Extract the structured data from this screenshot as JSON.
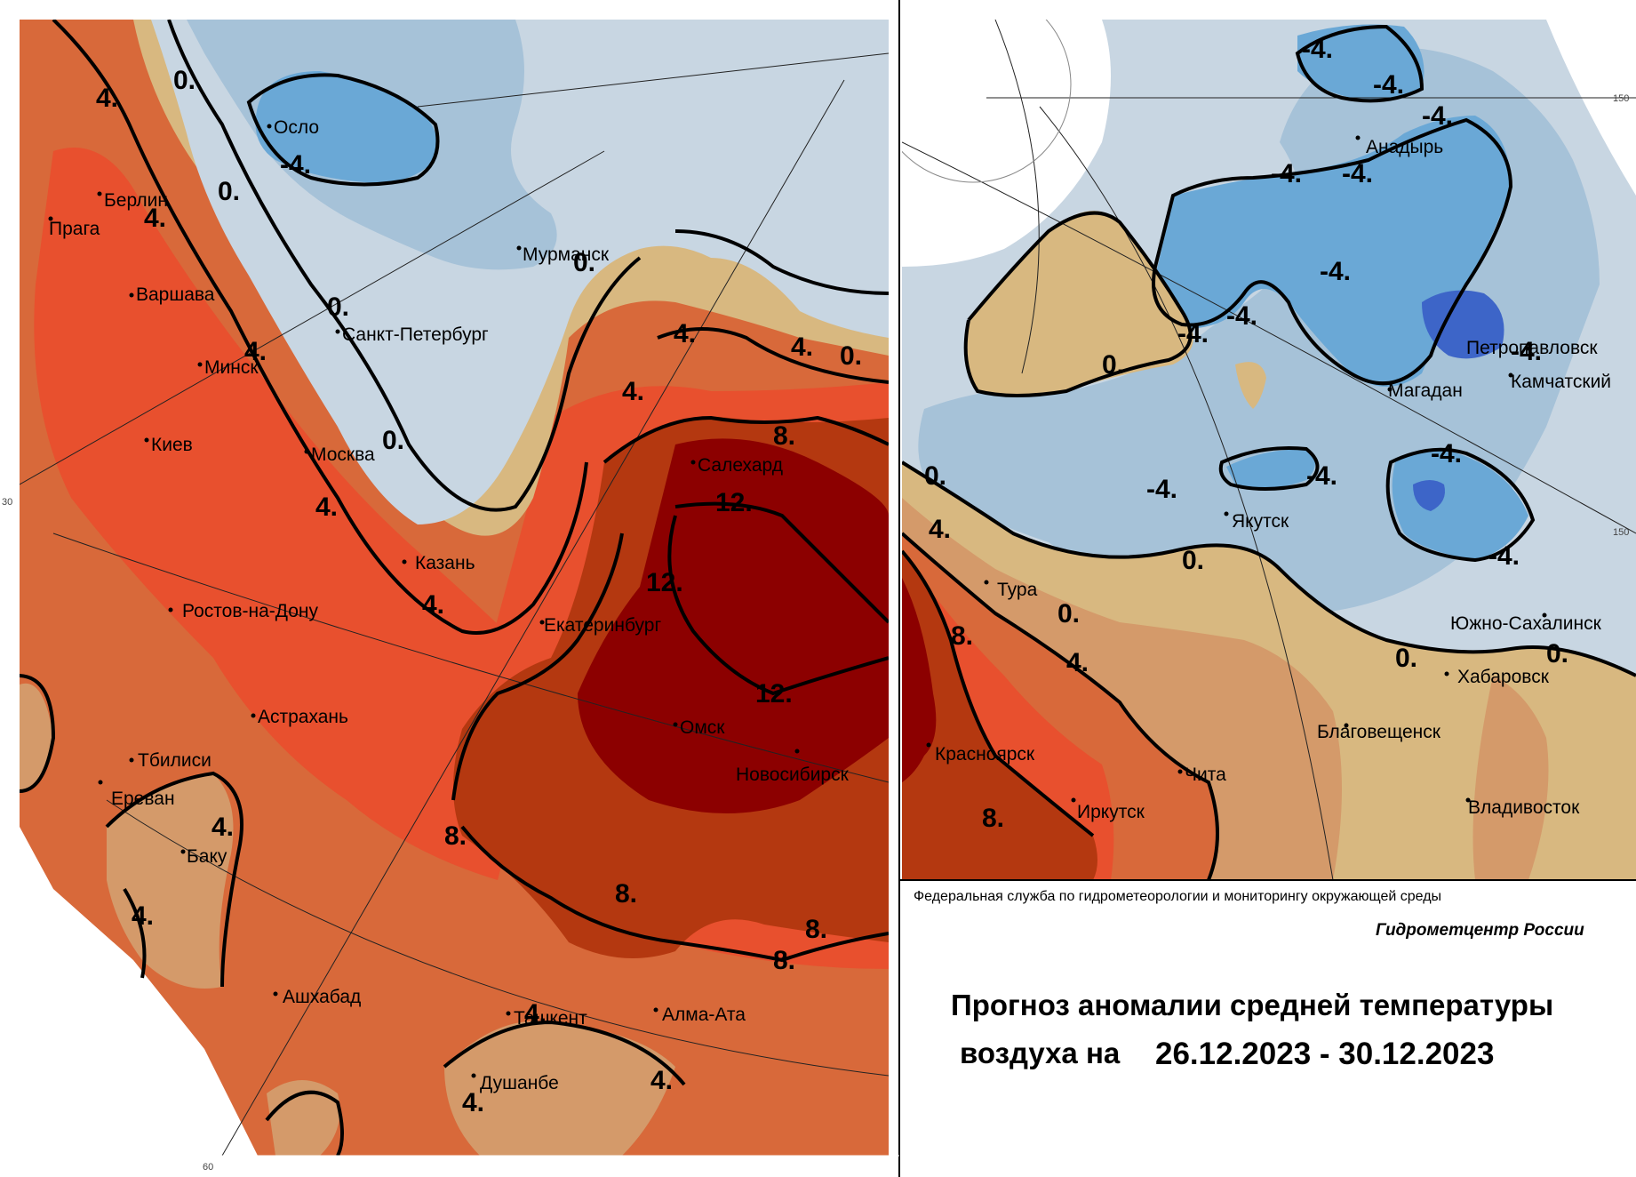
{
  "colors": {
    "anomaly_plus12": "#8c0000",
    "anomaly_8_12": "#b43810",
    "anomaly_4_8": "#e8502e",
    "anomaly_2_4": "#d8693a",
    "anomaly_0_2": "#d49a6a",
    "anomaly_0": "#d8b880",
    "anomaly_0_minus2": "#c8d6e2",
    "anomaly_minus2_minus4": "#a6c2d8",
    "anomaly_minus4": "#6aa8d6",
    "anomaly_minus6": "#3d65c8",
    "isoline": "#000000"
  },
  "left_map": {
    "cities": [
      {
        "name": "Осло"
      },
      {
        "name": "Берлин"
      },
      {
        "name": "Прага"
      },
      {
        "name": "Варшава"
      },
      {
        "name": "Минск"
      },
      {
        "name": "Санкт-Петербург"
      },
      {
        "name": "Мурманск"
      },
      {
        "name": "Москва"
      },
      {
        "name": "Киев"
      },
      {
        "name": "Казань"
      },
      {
        "name": "Ростов-на-Дону"
      },
      {
        "name": "Екатеринбург"
      },
      {
        "name": "Салехард"
      },
      {
        "name": "Астрахань"
      },
      {
        "name": "Тбилиси"
      },
      {
        "name": "Ереван"
      },
      {
        "name": "Баку"
      },
      {
        "name": "Омск"
      },
      {
        "name": "Новосибирск"
      },
      {
        "name": "Ашхабад"
      },
      {
        "name": "Ташкент"
      },
      {
        "name": "Алма-Ата"
      },
      {
        "name": "Душанбе"
      }
    ],
    "isolines": [
      "0.",
      "0.",
      "0.",
      "0.",
      "0.",
      "0.",
      "-4.",
      "4.",
      "4.",
      "4.",
      "4.",
      "4.",
      "4.",
      "4.",
      "4.",
      "4.",
      "4.",
      "4.",
      "4.",
      "4.",
      "8.",
      "8.",
      "8.",
      "8.",
      "8.",
      "12.",
      "12.",
      "12."
    ],
    "grid_labels": [
      "30",
      "60"
    ]
  },
  "right_map": {
    "cities": [
      {
        "name": "Анадырь"
      },
      {
        "name": "Петропавловск"
      },
      {
        "name": "Камчатский"
      },
      {
        "name": "Магадан"
      },
      {
        "name": "Якутск"
      },
      {
        "name": "Тура"
      },
      {
        "name": "Южно-Сахалинск"
      },
      {
        "name": "Хабаровск"
      },
      {
        "name": "Благовещенск"
      },
      {
        "name": "Красноярск"
      },
      {
        "name": "Чита"
      },
      {
        "name": "Иркутск"
      },
      {
        "name": "Владивосток"
      }
    ],
    "isolines": [
      "-4.",
      "-4.",
      "-4.",
      "-4.",
      "-4.",
      "-4.",
      "-4.",
      "-4.",
      "-4.",
      "-4.",
      "-4.",
      "-4.",
      "-4.",
      "0.",
      "0.",
      "0.",
      "0.",
      "0.",
      "0.",
      "4.",
      "4.",
      "8.",
      "8."
    ],
    "grid_labels": [
      "150",
      "150"
    ]
  },
  "legend_block": {
    "organization": "Федеральная служба по гидрометеорологии и мониторингу окружающей среды",
    "center": "Гидрометцентр России",
    "title_line1": "Прогноз аномалии средней температуры",
    "title_line2": "воздуха на",
    "date_range": "26.12.2023 - 30.12.2023"
  }
}
